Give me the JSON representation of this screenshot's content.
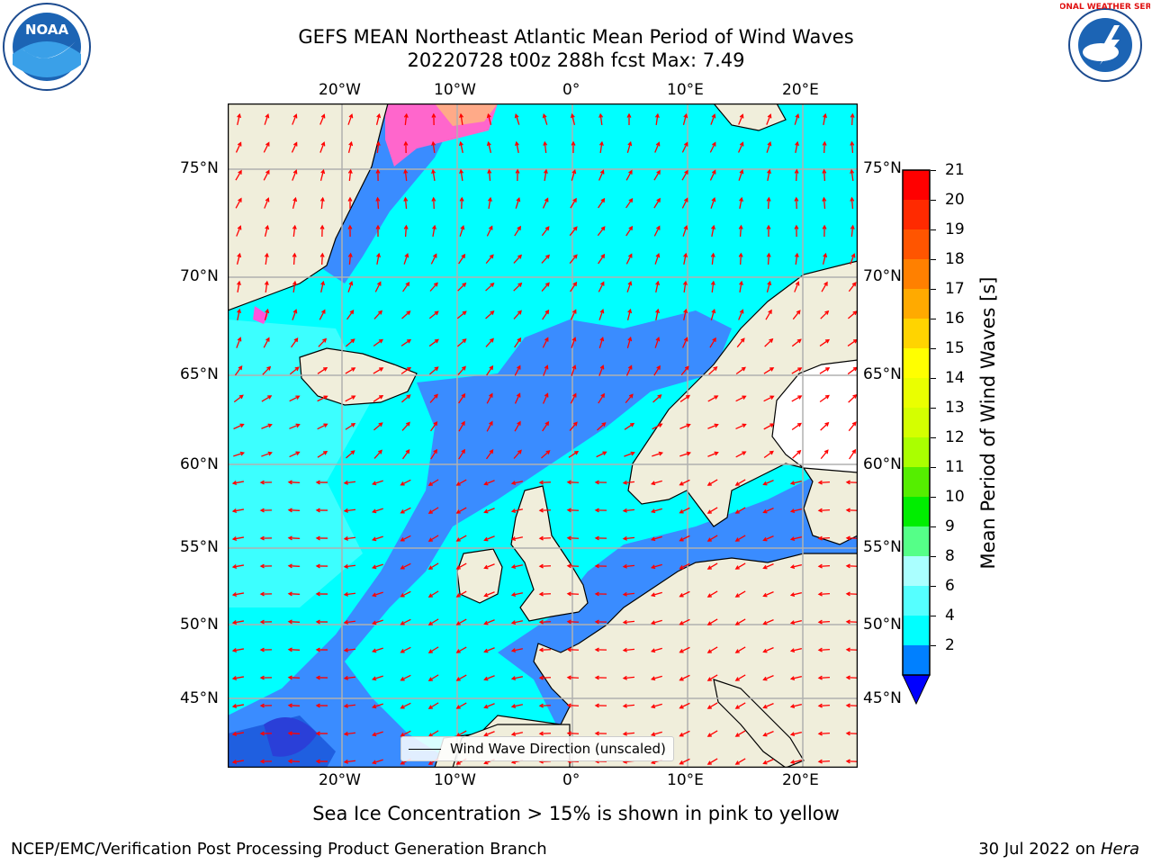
{
  "title": {
    "line1": "GEFS MEAN Northeast Atlantic Mean Period of Wind Waves",
    "line2": "20220728 t00z 288h fcst   Max: 7.49"
  },
  "map": {
    "lon_ticks": [
      "20°W",
      "10°W",
      "0°",
      "10°E",
      "20°E"
    ],
    "lat_ticks": [
      "75°N",
      "70°N",
      "65°N",
      "60°N",
      "55°N",
      "50°N",
      "45°N"
    ],
    "legend_label": "Wind Wave Direction (unscaled)",
    "colors": {
      "ocean_base": "#00ffff",
      "ocean_low": "#3a8cff",
      "land": "#f0eedb",
      "ice": "#ff66cc",
      "arrow": "#ff0000",
      "grid": "#b0b0b0"
    }
  },
  "colorbar": {
    "label": "Mean Period of Wind Waves [s]",
    "ticks": [
      "21",
      "20",
      "19",
      "18",
      "17",
      "16",
      "15",
      "14",
      "13",
      "12",
      "11",
      "10",
      "9",
      "8",
      "6",
      "4",
      "2"
    ],
    "colors": [
      "#ff0000",
      "#ff2a00",
      "#ff5500",
      "#ff8000",
      "#ffaa00",
      "#ffd400",
      "#ffff00",
      "#eaff00",
      "#d4ff00",
      "#aaff00",
      "#55ee00",
      "#00ee00",
      "#55ff88",
      "#aaffff",
      "#55ffff",
      "#00ffff",
      "#0080ff"
    ],
    "under_color": "#0000ff"
  },
  "caption": "Sea Ice Concentration > 15% is shown in pink to yellow",
  "footer": {
    "left": "NCEP/EMC/Verification Post Processing Product Generation Branch",
    "right_date": "30 Jul 2022 on ",
    "right_machine": "Hera"
  },
  "logos": {
    "noaa": "NOAA",
    "nws_text": "NATIONAL WEATHER SERVICE"
  }
}
